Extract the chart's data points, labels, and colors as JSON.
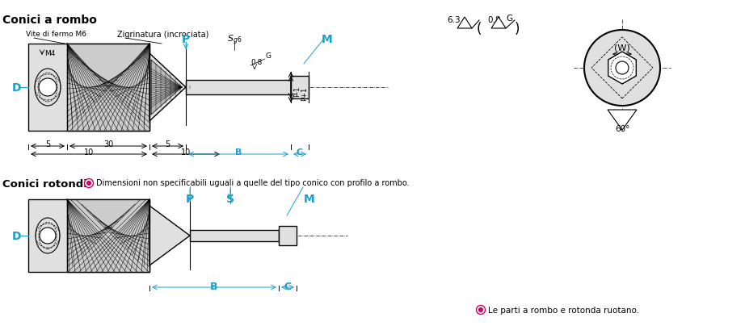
{
  "bg_color": "#ffffff",
  "cyan": "#1a9fcc",
  "black": "#000000",
  "lgray": "#e0e0e0",
  "mgray": "#cccccc",
  "magenta": "#cc0066",
  "text_conici_rombo": "Conici a rombo",
  "text_vite": "Vite di fermo M6",
  "text_zigrin": "Zigrinatura (incrociata)",
  "text_M4": "M4",
  "text_conici_rotondi": "Conici rotondi",
  "text_note": "Dimensioni non specificabili uguali a quelle del tipo conico con profilo a rombo.",
  "text_note2": "Le parti a rombo e rotonda ruotano.",
  "text_60": "60°",
  "text_W": "(W)"
}
